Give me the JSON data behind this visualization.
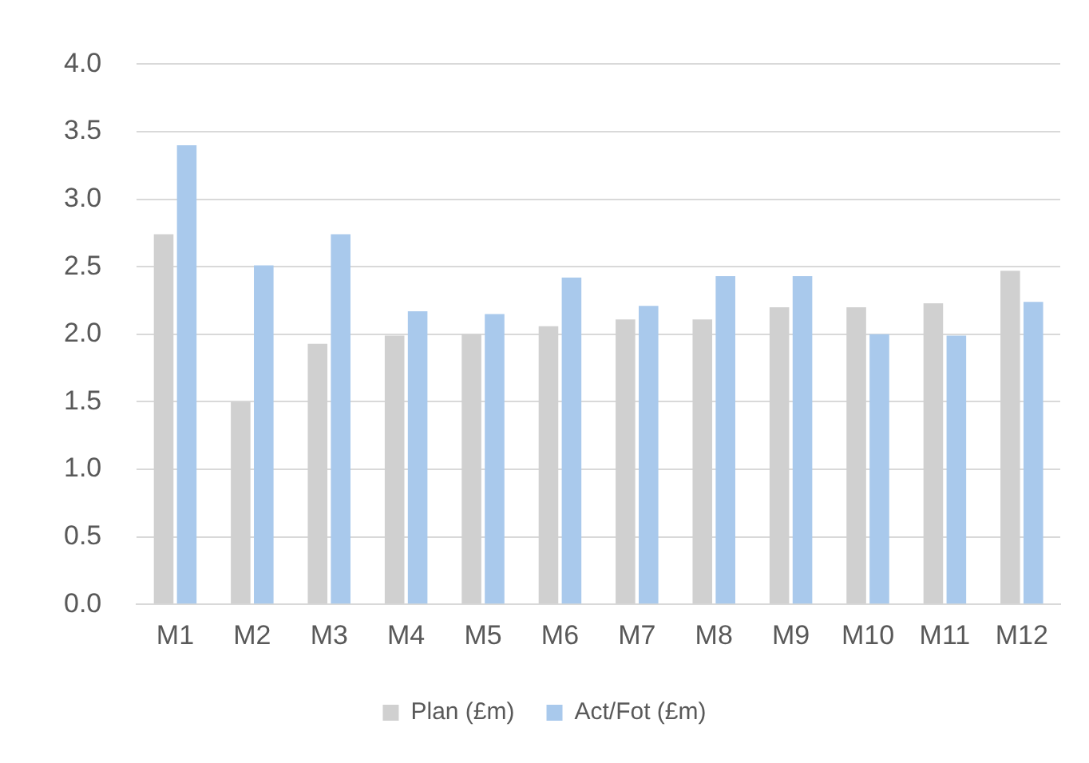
{
  "chart_data": {
    "type": "bar",
    "categories": [
      "M1",
      "M2",
      "M3",
      "M4",
      "M5",
      "M6",
      "M7",
      "M8",
      "M9",
      "M10",
      "M11",
      "M12"
    ],
    "series": [
      {
        "name": "Plan (£m)",
        "color": "#d0d0d0",
        "values": [
          2.74,
          1.5,
          1.93,
          1.99,
          2.0,
          2.06,
          2.11,
          2.11,
          2.2,
          2.2,
          2.23,
          2.47
        ]
      },
      {
        "name": "Act/Fot (£m)",
        "color": "#a9c9ec",
        "values": [
          3.4,
          2.51,
          2.74,
          2.17,
          2.15,
          2.42,
          2.21,
          2.43,
          2.43,
          2.0,
          1.99,
          2.24
        ]
      }
    ],
    "ylim": [
      0,
      4
    ],
    "yticks": [
      {
        "value": 0,
        "label": "0.0"
      },
      {
        "value": 0.5,
        "label": "0.5"
      },
      {
        "value": 1,
        "label": "1.0"
      },
      {
        "value": 1.5,
        "label": "1.5"
      },
      {
        "value": 2,
        "label": "2.0"
      },
      {
        "value": 2.5,
        "label": "2.5"
      },
      {
        "value": 3,
        "label": "3.0"
      },
      {
        "value": 3.5,
        "label": "3.5"
      },
      {
        "value": 4,
        "label": "4.0"
      }
    ],
    "grid": "y",
    "legend": "bottom"
  }
}
